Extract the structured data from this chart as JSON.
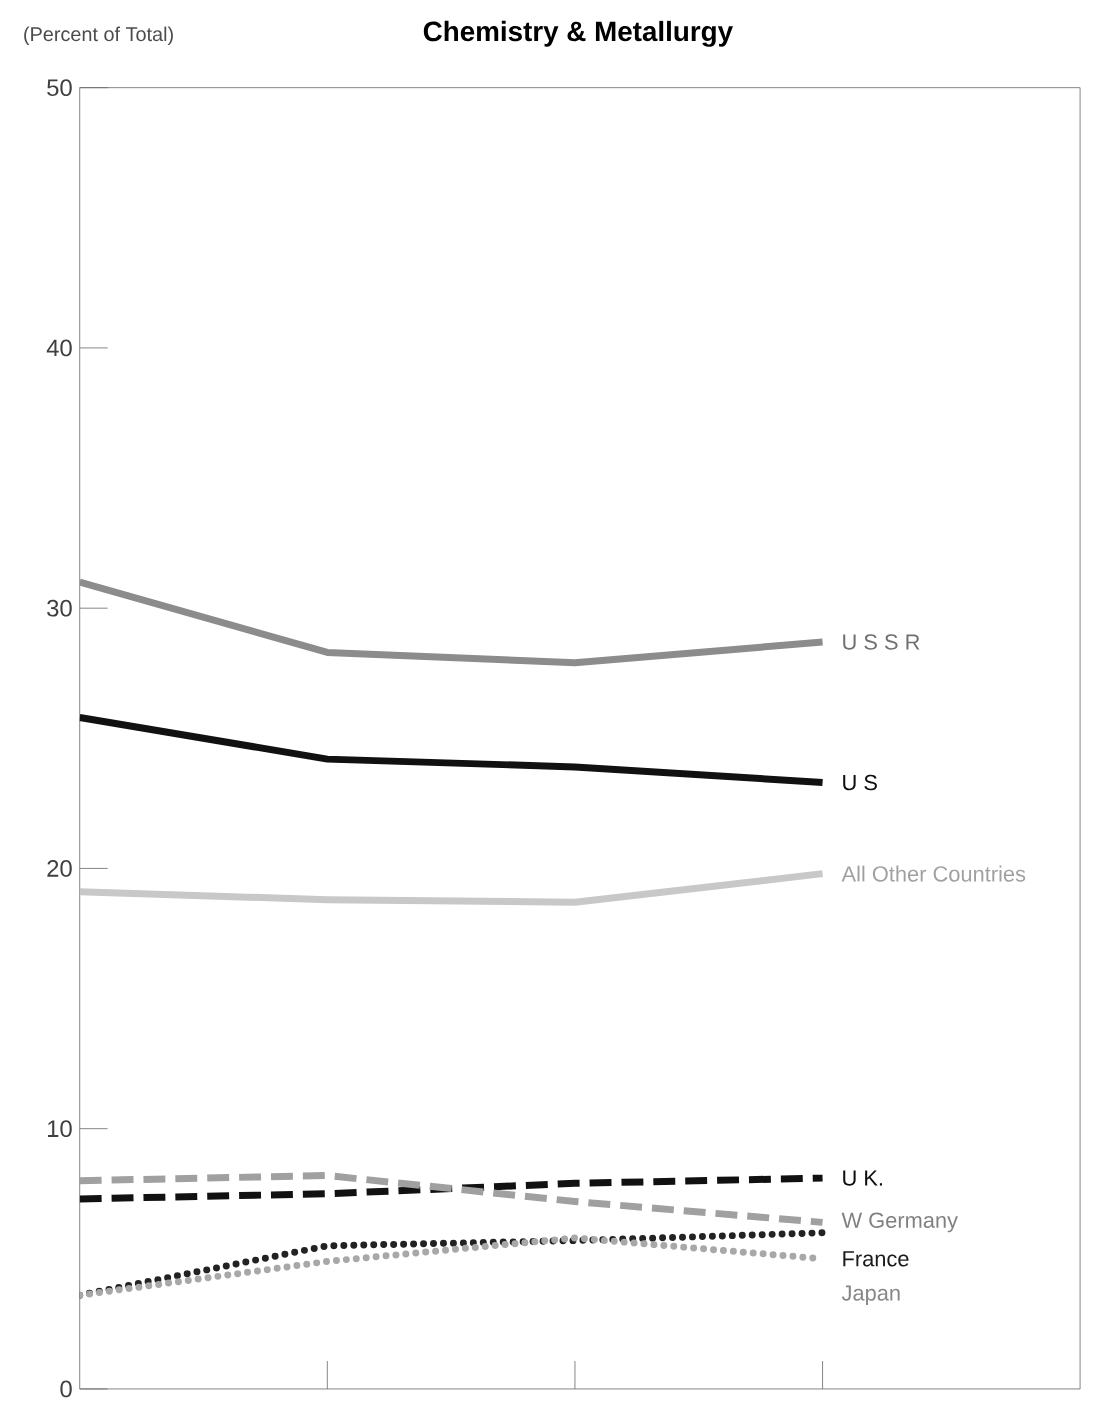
{
  "chart_data": {
    "type": "line",
    "title": "Chemistry & Metallurgy",
    "ylabel": "(Percent of Total)",
    "categories": [
      null,
      null,
      null,
      null
    ],
    "ylim": [
      0,
      50
    ],
    "yticks": [
      0,
      10,
      20,
      30,
      40,
      50
    ],
    "tick_labels": "y",
    "grid": false,
    "legend": false,
    "marker": "none",
    "series": [
      {
        "name": "U S S R",
        "color": "#8c8c8c",
        "line_style": "solid",
        "values": [
          31.0,
          28.3,
          27.9,
          28.7
        ]
      },
      {
        "name": "U S",
        "color": "#111111",
        "line_style": "solid",
        "values": [
          25.8,
          24.2,
          23.9,
          23.3
        ]
      },
      {
        "name": "All Other Countries",
        "color": "#c8c8c8",
        "line_style": "solid",
        "values": [
          19.1,
          18.8,
          18.7,
          19.8
        ]
      },
      {
        "name": "U K.",
        "color": "#111111",
        "line_style": "dashed",
        "values": [
          7.3,
          7.5,
          7.9,
          8.1
        ]
      },
      {
        "name": "W  Germany",
        "color": "#a0a0a0",
        "line_style": "dashed",
        "values": [
          8.0,
          8.2,
          7.2,
          6.4
        ]
      },
      {
        "name": "France",
        "color": "#222222",
        "line_style": "dotted",
        "values": [
          3.6,
          5.5,
          5.7,
          6.0
        ]
      },
      {
        "name": "Japan",
        "color": "#a8a8a8",
        "line_style": "dotted",
        "values": [
          3.6,
          4.9,
          5.8,
          5.0
        ]
      }
    ]
  }
}
